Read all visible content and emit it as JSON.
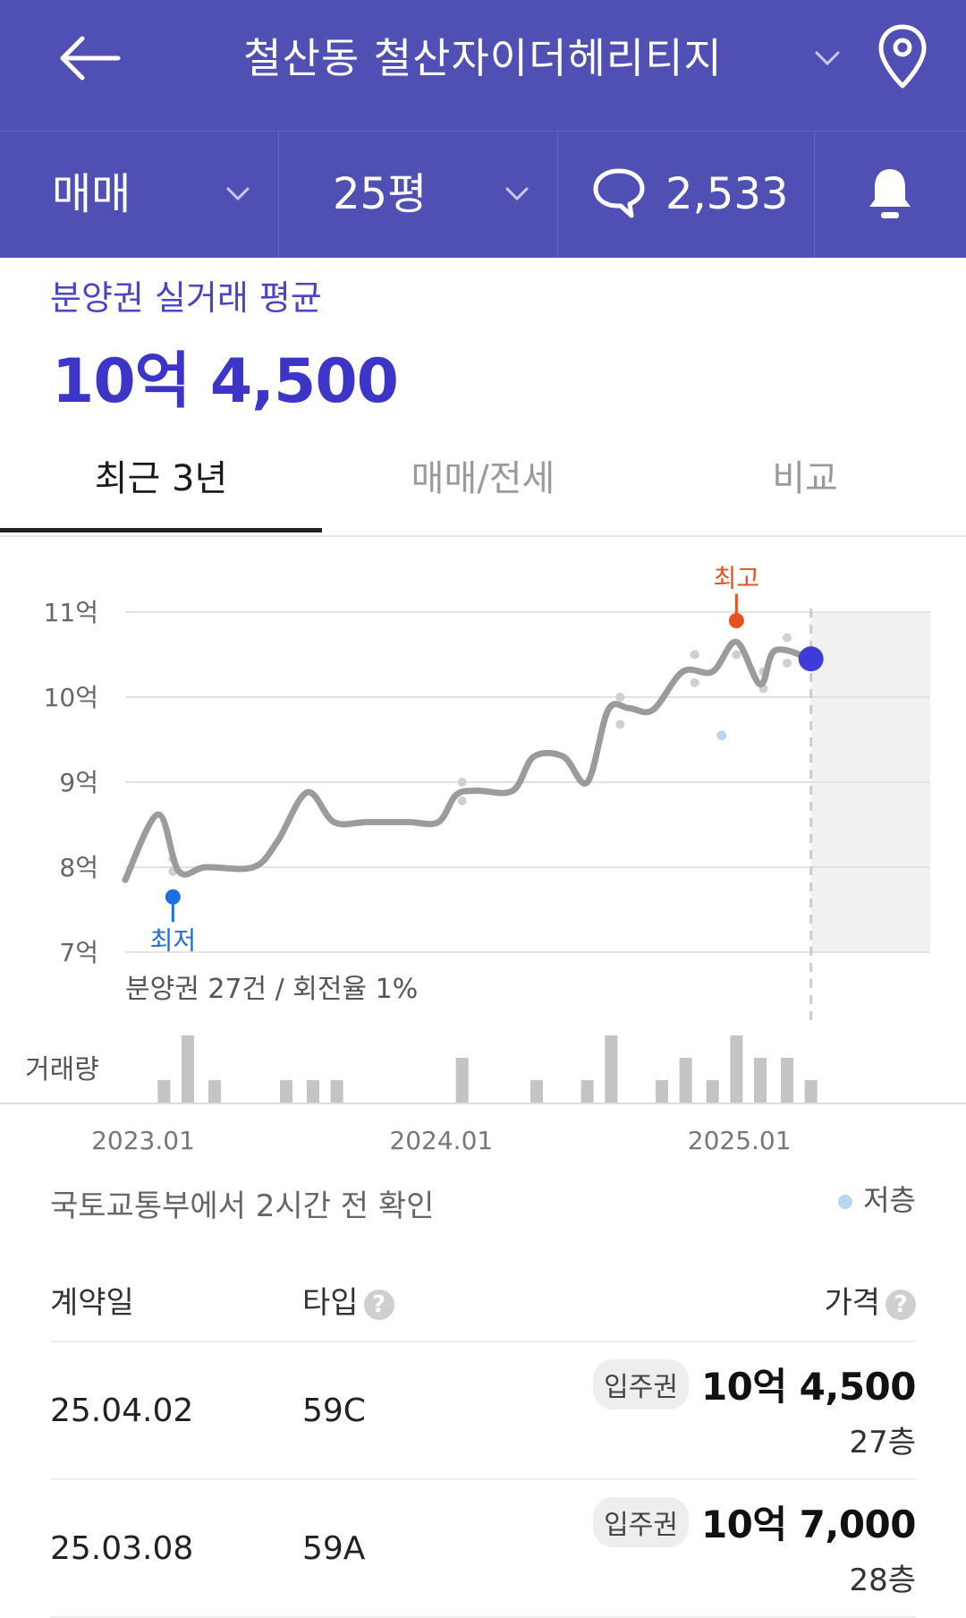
{
  "header": {
    "title": "철산동 철산자이더헤리티지",
    "trade_type": "매매",
    "size": "25평",
    "comment_count": "2,533"
  },
  "summary": {
    "label": "분양권 실거래 평균",
    "value": "10억 4,500"
  },
  "tabs": [
    {
      "label": "최근 3년",
      "active": true
    },
    {
      "label": "매매/전세",
      "active": false
    },
    {
      "label": "비교",
      "active": false
    }
  ],
  "chart_data": {
    "type": "line",
    "y_ticks": [
      "11억",
      "10억",
      "9억",
      "8억",
      "7억"
    ],
    "ylim": [
      7,
      11
    ],
    "y_unit": "억",
    "x_ticks": [
      "2023.01",
      "2024.01",
      "2025.01"
    ],
    "xlim": [
      2022.95,
      2025.65
    ],
    "series": [
      {
        "kind": "trend",
        "color": "#9b9b9b",
        "points": [
          [
            2022.95,
            7.85
          ],
          [
            2023.06,
            8.62
          ],
          [
            2023.13,
            7.95
          ],
          [
            2023.22,
            8.0
          ],
          [
            2023.38,
            8.0
          ],
          [
            2023.46,
            8.3
          ],
          [
            2023.56,
            8.88
          ],
          [
            2023.65,
            8.53
          ],
          [
            2023.76,
            8.53
          ],
          [
            2023.9,
            8.53
          ],
          [
            2024.0,
            8.53
          ],
          [
            2024.06,
            8.85
          ],
          [
            2024.13,
            8.9
          ],
          [
            2024.25,
            8.9
          ],
          [
            2024.32,
            9.3
          ],
          [
            2024.42,
            9.3
          ],
          [
            2024.5,
            9.0
          ],
          [
            2024.57,
            9.85
          ],
          [
            2024.64,
            9.87
          ],
          [
            2024.72,
            9.85
          ],
          [
            2024.82,
            10.3
          ],
          [
            2024.92,
            10.3
          ],
          [
            2025.0,
            10.65
          ],
          [
            2025.08,
            10.15
          ],
          [
            2025.13,
            10.55
          ],
          [
            2025.25,
            10.45
          ]
        ]
      }
    ],
    "scatter": [
      [
        2023.11,
        8.1
      ],
      [
        2023.11,
        7.95
      ],
      [
        2024.08,
        9.0
      ],
      [
        2024.08,
        8.78
      ],
      [
        2024.61,
        10.0
      ],
      [
        2024.61,
        9.68
      ],
      [
        2024.86,
        10.5
      ],
      [
        2024.86,
        10.17
      ],
      [
        2025.0,
        10.5
      ],
      [
        2025.09,
        10.3
      ],
      [
        2025.09,
        10.1
      ],
      [
        2025.17,
        10.7
      ],
      [
        2025.17,
        10.4
      ]
    ],
    "low_floor_points": [
      [
        2024.95,
        9.55
      ]
    ],
    "current_point": [
      2025.25,
      10.45
    ],
    "max_marker": {
      "label": "최고",
      "x": 2025.0,
      "y": 10.9
    },
    "min_marker": {
      "label": "최저",
      "x": 2023.11,
      "y": 7.65
    },
    "forecast_region_start": 2025.25,
    "volume_label": "거래량",
    "volume": [
      [
        2023.08,
        1
      ],
      [
        2023.16,
        3
      ],
      [
        2023.25,
        1
      ],
      [
        2023.49,
        1
      ],
      [
        2023.58,
        1
      ],
      [
        2023.66,
        1
      ],
      [
        2024.08,
        2
      ],
      [
        2024.33,
        1
      ],
      [
        2024.5,
        1
      ],
      [
        2024.58,
        3
      ],
      [
        2024.75,
        1
      ],
      [
        2024.83,
        2
      ],
      [
        2024.92,
        1
      ],
      [
        2025.0,
        3
      ],
      [
        2025.08,
        2
      ],
      [
        2025.17,
        2
      ],
      [
        2025.25,
        1
      ]
    ],
    "annotation": "분양권 27건 / 회전율 1%",
    "colors": {
      "trend": "#9b9b9b",
      "current": "#3f3bd6",
      "max": "#e8501e",
      "min": "#1c6fe0",
      "low_floor": "#b8d6f2",
      "volume": "#c4c4c4"
    }
  },
  "source_note": "국토교통부에서 2시간 전 확인",
  "legend_low_floor": "저층",
  "table": {
    "headers": {
      "date": "계약일",
      "type": "타입",
      "price": "가격"
    },
    "rows": [
      {
        "date": "25.04.02",
        "type": "59C",
        "badge": "입주권",
        "price": "10억 4,500",
        "floor": "27층"
      },
      {
        "date": "25.03.08",
        "type": "59A",
        "badge": "입주권",
        "price": "10억 7,000",
        "floor": "28층"
      }
    ]
  }
}
